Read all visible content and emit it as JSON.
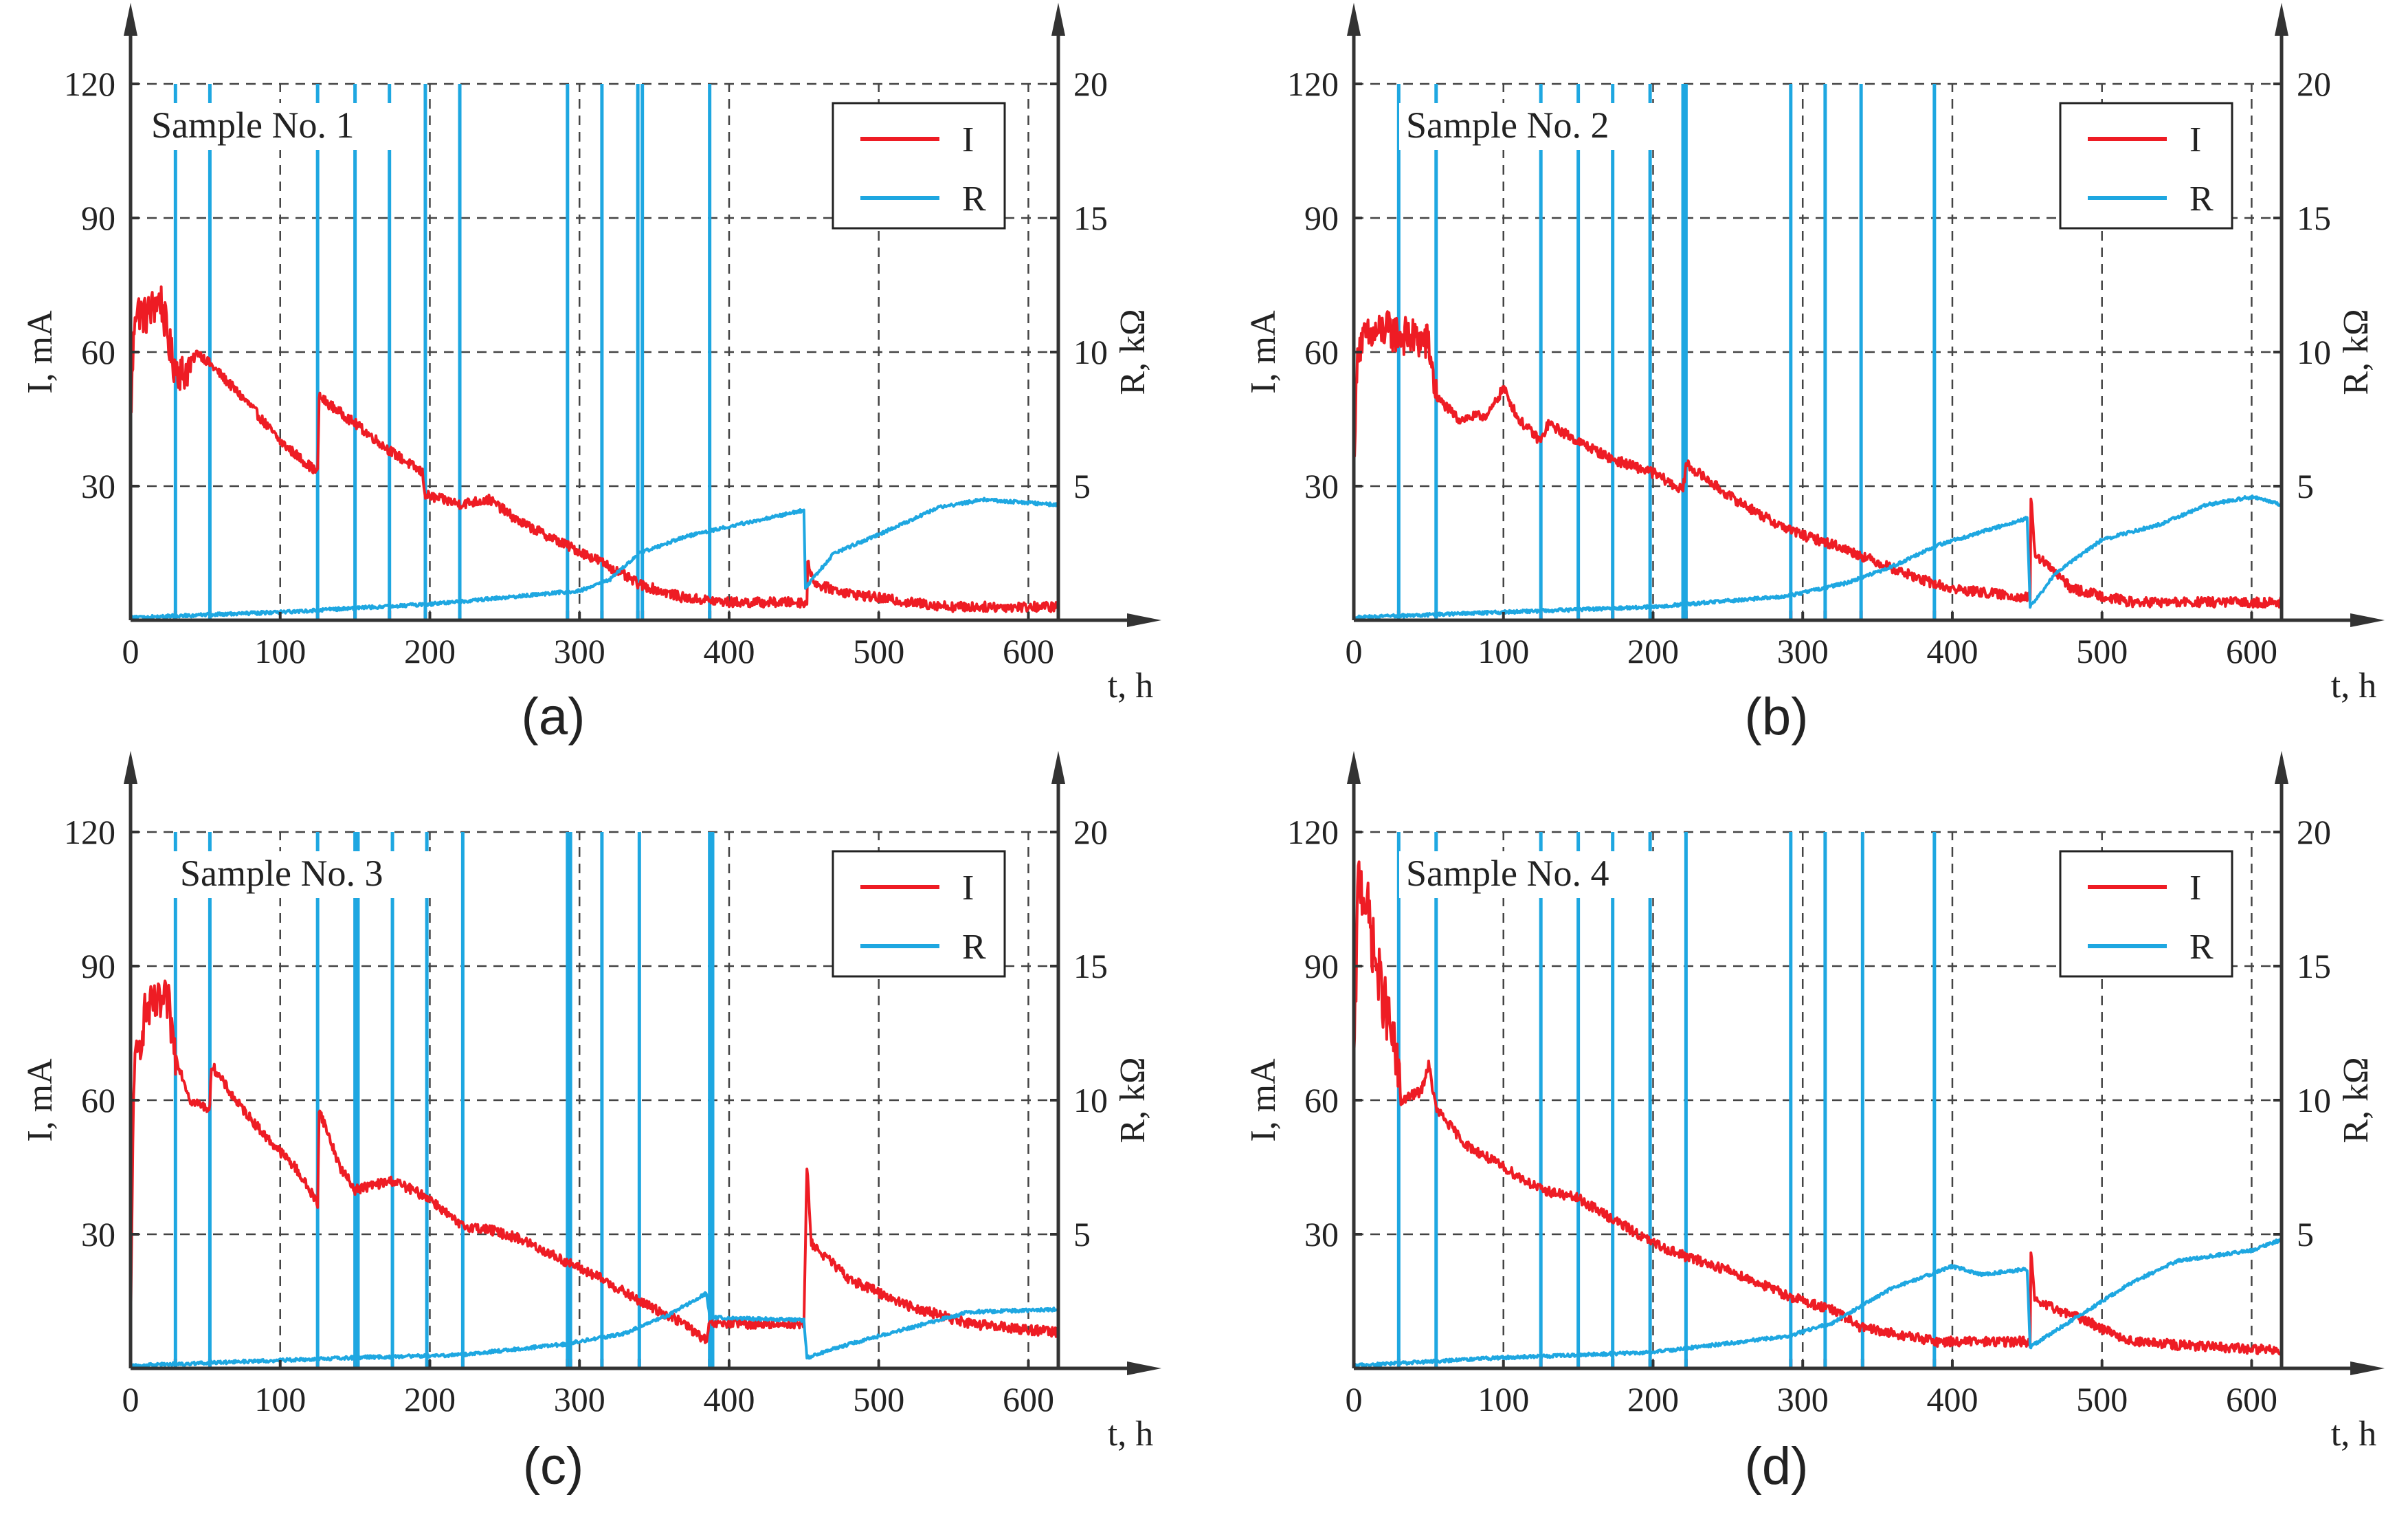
{
  "colors": {
    "current": "#ee1c24",
    "resistance": "#1ea7e1",
    "axis": "#333333"
  },
  "chart_data": [
    {
      "type": "line",
      "panel_label": "(a)",
      "title": "Sample No. 1",
      "xlabel": "t, h",
      "ylabel_left": "I, mA",
      "ylabel_right": "R, kΩ",
      "xlim": [
        0,
        620
      ],
      "ylim_left": [
        0,
        120
      ],
      "ylim_right": [
        0,
        20
      ],
      "xticks": [
        "0",
        "100",
        "200",
        "300",
        "400",
        "500",
        "600"
      ],
      "yticks_left": [
        "30",
        "60",
        "90",
        "120"
      ],
      "yticks_right": [
        "5",
        "10",
        "15",
        "20"
      ],
      "grid": true,
      "legend": [
        "I",
        "R"
      ],
      "legend_position": "top-right",
      "interruptions_h": [
        30,
        53,
        125,
        150,
        173,
        197,
        220,
        292,
        315,
        339,
        342,
        387
      ],
      "series": [
        {
          "name": "I",
          "axis": "left",
          "noise": 4.5,
          "noise_until": 40,
          "points": [
            [
              0,
              45
            ],
            [
              3,
              70
            ],
            [
              10,
              68
            ],
            [
              20,
              72
            ],
            [
              28,
              58
            ],
            [
              35,
              55
            ],
            [
              45,
              60
            ],
            [
              60,
              55
            ],
            [
              80,
              48
            ],
            [
              100,
              40
            ],
            [
              125,
              33
            ],
            [
              126,
              50
            ],
            [
              150,
              44
            ],
            [
              173,
              38
            ],
            [
              195,
              33
            ],
            [
              197,
              28
            ],
            [
              220,
              26
            ],
            [
              240,
              27
            ],
            [
              260,
              22
            ],
            [
              290,
              17
            ],
            [
              315,
              13
            ],
            [
              340,
              8
            ],
            [
              370,
              5
            ],
            [
              400,
              4
            ],
            [
              452,
              4
            ],
            [
              452,
              13
            ],
            [
              458,
              8
            ],
            [
              480,
              6
            ],
            [
              520,
              4
            ],
            [
              550,
              3
            ],
            [
              620,
              3
            ]
          ]
        },
        {
          "name": "R",
          "axis": "right",
          "noise": 0,
          "points": [
            [
              0,
              0.1
            ],
            [
              100,
              0.3
            ],
            [
              200,
              0.6
            ],
            [
              300,
              1.1
            ],
            [
              320,
              1.5
            ],
            [
              340,
              2.5
            ],
            [
              370,
              3.1
            ],
            [
              400,
              3.5
            ],
            [
              450,
              4.1
            ],
            [
              451,
              1.2
            ],
            [
              470,
              2.5
            ],
            [
              500,
              3.2
            ],
            [
              540,
              4.2
            ],
            [
              570,
              4.5
            ],
            [
              620,
              4.3
            ]
          ]
        }
      ]
    },
    {
      "type": "line",
      "panel_label": "(b)",
      "title": "Sample No. 2",
      "xlabel": "t, h",
      "ylabel_left": "I, mA",
      "ylabel_right": "R, kΩ",
      "xlim": [
        0,
        620
      ],
      "ylim_left": [
        0,
        120
      ],
      "ylim_right": [
        0,
        20
      ],
      "xticks": [
        "0",
        "100",
        "200",
        "300",
        "400",
        "500",
        "600"
      ],
      "yticks_left": [
        "30",
        "60",
        "90",
        "120"
      ],
      "yticks_right": [
        "5",
        "10",
        "15",
        "20"
      ],
      "grid": true,
      "legend": [
        "I",
        "R"
      ],
      "legend_position": "top-right",
      "interruptions_h": [
        30,
        55,
        125,
        150,
        173,
        198,
        220,
        222,
        292,
        315,
        339,
        388
      ],
      "series": [
        {
          "name": "I",
          "axis": "left",
          "noise": 4.5,
          "noise_until": 55,
          "points": [
            [
              0,
              37
            ],
            [
              3,
              62
            ],
            [
              20,
              65
            ],
            [
              50,
              62
            ],
            [
              55,
              50
            ],
            [
              70,
              45
            ],
            [
              90,
              46
            ],
            [
              100,
              52
            ],
            [
              110,
              45
            ],
            [
              125,
              40
            ],
            [
              130,
              44
            ],
            [
              150,
              40
            ],
            [
              173,
              36
            ],
            [
              200,
              33
            ],
            [
              220,
              29
            ],
            [
              222,
              35
            ],
            [
              250,
              28
            ],
            [
              280,
              22
            ],
            [
              300,
              19
            ],
            [
              320,
              17
            ],
            [
              350,
              13
            ],
            [
              380,
              9
            ],
            [
              400,
              7
            ],
            [
              452,
              5
            ],
            [
              452,
              30
            ],
            [
              455,
              15
            ],
            [
              480,
              7
            ],
            [
              520,
              4
            ],
            [
              620,
              4
            ]
          ]
        },
        {
          "name": "R",
          "axis": "right",
          "noise": 0,
          "points": [
            [
              0,
              0.1
            ],
            [
              100,
              0.3
            ],
            [
              200,
              0.5
            ],
            [
              290,
              0.9
            ],
            [
              330,
              1.4
            ],
            [
              360,
              2
            ],
            [
              390,
              2.8
            ],
            [
              420,
              3.3
            ],
            [
              450,
              3.8
            ],
            [
              452,
              0.5
            ],
            [
              470,
              1.8
            ],
            [
              500,
              3
            ],
            [
              540,
              3.6
            ],
            [
              570,
              4.3
            ],
            [
              600,
              4.6
            ],
            [
              620,
              4.3
            ]
          ]
        }
      ]
    },
    {
      "type": "line",
      "panel_label": "(c)",
      "title": "Sample No. 3",
      "xlabel": "t, h",
      "ylabel_left": "I, mA",
      "ylabel_right": "R, kΩ",
      "xlim": [
        0,
        620
      ],
      "ylim_left": [
        0,
        120
      ],
      "ylim_right": [
        0,
        20
      ],
      "xticks": [
        "0",
        "100",
        "200",
        "300",
        "400",
        "500",
        "600"
      ],
      "yticks_left": [
        "30",
        "60",
        "90",
        "120"
      ],
      "yticks_right": [
        "5",
        "10",
        "15",
        "20"
      ],
      "grid": true,
      "legend": [
        "I",
        "R"
      ],
      "legend_position": "top-right",
      "interruptions_h": [
        30,
        53,
        125,
        150,
        152,
        175,
        198,
        222,
        292,
        294,
        315,
        340,
        387,
        389
      ],
      "series": [
        {
          "name": "I",
          "axis": "left",
          "noise": 5,
          "noise_until": 30,
          "points": [
            [
              0,
              5
            ],
            [
              2,
              65
            ],
            [
              10,
              80
            ],
            [
              25,
              82
            ],
            [
              30,
              70
            ],
            [
              40,
              60
            ],
            [
              53,
              58
            ],
            [
              54,
              68
            ],
            [
              70,
              60
            ],
            [
              90,
              52
            ],
            [
              110,
              45
            ],
            [
              125,
              37
            ],
            [
              126,
              58
            ],
            [
              140,
              45
            ],
            [
              150,
              40
            ],
            [
              175,
              42
            ],
            [
              200,
              38
            ],
            [
              220,
              32
            ],
            [
              240,
              31
            ],
            [
              260,
              29
            ],
            [
              290,
              24
            ],
            [
              315,
              20
            ],
            [
              340,
              15
            ],
            [
              370,
              10
            ],
            [
              385,
              6
            ],
            [
              387,
              10
            ],
            [
              450,
              10
            ],
            [
              452,
              45
            ],
            [
              455,
              28
            ],
            [
              480,
              20
            ],
            [
              520,
              14
            ],
            [
              560,
              10
            ],
            [
              620,
              8
            ]
          ]
        },
        {
          "name": "R",
          "axis": "right",
          "noise": 0,
          "points": [
            [
              0,
              0.1
            ],
            [
              50,
              0.2
            ],
            [
              150,
              0.4
            ],
            [
              220,
              0.5
            ],
            [
              290,
              0.9
            ],
            [
              330,
              1.3
            ],
            [
              360,
              2
            ],
            [
              385,
              2.8
            ],
            [
              387,
              1.9
            ],
            [
              450,
              1.8
            ],
            [
              452,
              0.4
            ],
            [
              480,
              0.9
            ],
            [
              520,
              1.5
            ],
            [
              560,
              2.1
            ],
            [
              620,
              2.2
            ]
          ]
        }
      ]
    },
    {
      "type": "line",
      "panel_label": "(d)",
      "title": "Sample No. 4",
      "xlabel": "t, h",
      "ylabel_left": "I, mA",
      "ylabel_right": "R, kΩ",
      "xlim": [
        0,
        620
      ],
      "ylim_left": [
        0,
        120
      ],
      "ylim_right": [
        0,
        20
      ],
      "xticks": [
        "0",
        "100",
        "200",
        "300",
        "400",
        "500",
        "600"
      ],
      "yticks_left": [
        "30",
        "60",
        "90",
        "120"
      ],
      "yticks_right": [
        "5",
        "10",
        "15",
        "20"
      ],
      "grid": true,
      "legend": [
        "I",
        "R"
      ],
      "legend_position": "top-right",
      "interruptions_h": [
        30,
        55,
        125,
        150,
        173,
        198,
        222,
        292,
        315,
        340,
        388
      ],
      "series": [
        {
          "name": "I",
          "axis": "left",
          "noise": 7,
          "noise_until": 32,
          "points": [
            [
              0,
              65
            ],
            [
              3,
              110
            ],
            [
              8,
              105
            ],
            [
              15,
              90
            ],
            [
              25,
              75
            ],
            [
              32,
              60
            ],
            [
              45,
              62
            ],
            [
              50,
              68
            ],
            [
              55,
              58
            ],
            [
              75,
              50
            ],
            [
              100,
              45
            ],
            [
              125,
              40
            ],
            [
              150,
              38
            ],
            [
              175,
              33
            ],
            [
              200,
              28
            ],
            [
              222,
              25
            ],
            [
              250,
              22
            ],
            [
              292,
              16
            ],
            [
              320,
              13
            ],
            [
              340,
              9
            ],
            [
              390,
              6
            ],
            [
              452,
              6
            ],
            [
              452,
              28
            ],
            [
              455,
              15
            ],
            [
              480,
              12
            ],
            [
              520,
              6
            ],
            [
              560,
              5
            ],
            [
              620,
              4
            ]
          ]
        },
        {
          "name": "R",
          "axis": "right",
          "noise": 0,
          "points": [
            [
              0,
              0.1
            ],
            [
              100,
              0.4
            ],
            [
              200,
              0.6
            ],
            [
              290,
              1.2
            ],
            [
              320,
              1.7
            ],
            [
              360,
              3
            ],
            [
              400,
              3.8
            ],
            [
              420,
              3.5
            ],
            [
              450,
              3.7
            ],
            [
              452,
              0.8
            ],
            [
              480,
              1.8
            ],
            [
              520,
              3.2
            ],
            [
              550,
              4
            ],
            [
              600,
              4.4
            ],
            [
              620,
              4.8
            ]
          ]
        }
      ]
    }
  ]
}
